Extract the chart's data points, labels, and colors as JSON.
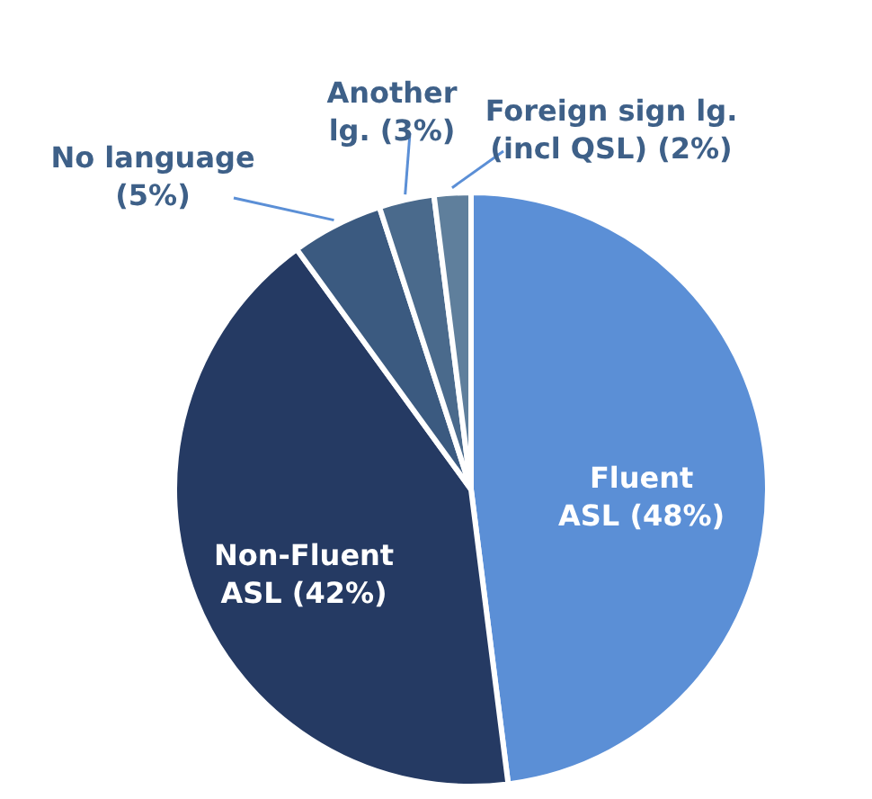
{
  "chart_data": {
    "type": "pie",
    "categories": [
      "Fluent ASL (48%)",
      "Non-Fluent ASL (42%)",
      "No language (5%)",
      "Another lg. (3%)",
      "Foreign sign lg. (incl QSL) (2%)"
    ],
    "values": [
      48,
      42,
      5,
      3,
      2
    ],
    "colors": [
      "#5b8fd6",
      "#253a63",
      "#3b5a80",
      "#4a6a8c",
      "#5f7f9c"
    ]
  }
}
